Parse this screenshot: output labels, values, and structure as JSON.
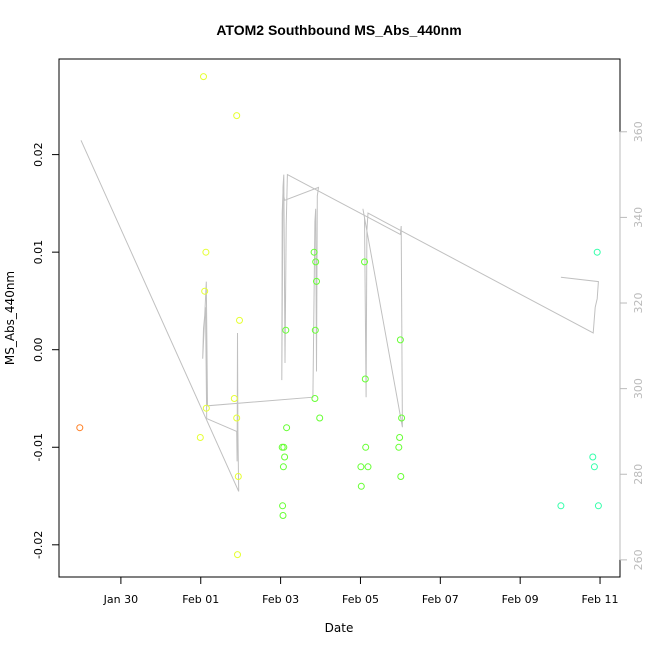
{
  "chart_data": {
    "type": "scatter",
    "title": "ATOM2 Southbound MS_Abs_440nm",
    "xlabel": "Date",
    "ylabel": "MS_Abs_440nm",
    "x_ticks": [
      {
        "label": "Jan 30",
        "day": 29
      },
      {
        "label": "Feb 01",
        "day": 31
      },
      {
        "label": "Feb 03",
        "day": 33
      },
      {
        "label": "Feb 05",
        "day": 35
      },
      {
        "label": "Feb 07",
        "day": 37
      },
      {
        "label": "Feb 09",
        "day": 39
      },
      {
        "label": "Feb 11",
        "day": 41
      }
    ],
    "xlim": [
      27.45,
      41.5
    ],
    "ylim": [
      -0.0233,
      0.0298
    ],
    "y_ticks": [
      -0.02,
      -0.01,
      0.0,
      0.01,
      0.02
    ],
    "y_tick_labels": [
      "-0.02",
      "-0.01",
      "0.00",
      "0.01",
      "0.02"
    ],
    "y2lim": [
      256,
      377
    ],
    "y2_ticks": [
      260,
      280,
      300,
      320,
      340,
      360
    ],
    "y2_tick_labels": [
      "260",
      "280",
      "300",
      "320",
      "340",
      "360"
    ],
    "grid": false,
    "colors": {
      "line": "#c0c0c0",
      "orange": "#ff7f24",
      "yellow": "#e6ff33",
      "green": "#66ff33",
      "cyan": "#33ffaa"
    },
    "points": [
      {
        "x": 27.97,
        "y": -0.008,
        "c": "orange"
      },
      {
        "x": 30.99,
        "y": -0.009,
        "c": "yellow"
      },
      {
        "x": 31.07,
        "y": 0.028,
        "c": "yellow"
      },
      {
        "x": 31.1,
        "y": 0.006,
        "c": "yellow"
      },
      {
        "x": 31.13,
        "y": 0.01,
        "c": "yellow"
      },
      {
        "x": 31.14,
        "y": -0.006,
        "c": "yellow"
      },
      {
        "x": 31.84,
        "y": -0.005,
        "c": "yellow"
      },
      {
        "x": 31.9,
        "y": -0.007,
        "c": "yellow"
      },
      {
        "x": 31.9,
        "y": 0.024,
        "c": "yellow"
      },
      {
        "x": 31.92,
        "y": -0.021,
        "c": "yellow"
      },
      {
        "x": 31.94,
        "y": -0.013,
        "c": "yellow"
      },
      {
        "x": 31.97,
        "y": 0.003,
        "c": "yellow"
      },
      {
        "x": 33.04,
        "y": -0.01,
        "c": "green"
      },
      {
        "x": 33.05,
        "y": -0.016,
        "c": "green"
      },
      {
        "x": 33.06,
        "y": -0.017,
        "c": "green"
      },
      {
        "x": 33.07,
        "y": -0.012,
        "c": "green"
      },
      {
        "x": 33.08,
        "y": -0.01,
        "c": "green"
      },
      {
        "x": 33.1,
        "y": -0.011,
        "c": "green"
      },
      {
        "x": 33.13,
        "y": 0.002,
        "c": "green"
      },
      {
        "x": 33.15,
        "y": -0.008,
        "c": "green"
      },
      {
        "x": 33.84,
        "y": 0.01,
        "c": "green"
      },
      {
        "x": 33.86,
        "y": -0.005,
        "c": "green"
      },
      {
        "x": 33.87,
        "y": 0.002,
        "c": "green"
      },
      {
        "x": 33.88,
        "y": 0.009,
        "c": "green"
      },
      {
        "x": 33.9,
        "y": 0.007,
        "c": "green"
      },
      {
        "x": 33.98,
        "y": -0.007,
        "c": "green"
      },
      {
        "x": 35.01,
        "y": -0.012,
        "c": "green"
      },
      {
        "x": 35.02,
        "y": -0.014,
        "c": "green"
      },
      {
        "x": 35.1,
        "y": 0.009,
        "c": "green"
      },
      {
        "x": 35.12,
        "y": -0.003,
        "c": "green"
      },
      {
        "x": 35.13,
        "y": -0.01,
        "c": "green"
      },
      {
        "x": 35.19,
        "y": -0.012,
        "c": "green"
      },
      {
        "x": 35.96,
        "y": -0.01,
        "c": "green"
      },
      {
        "x": 35.98,
        "y": -0.009,
        "c": "green"
      },
      {
        "x": 36.0,
        "y": 0.001,
        "c": "green"
      },
      {
        "x": 36.01,
        "y": -0.013,
        "c": "green"
      },
      {
        "x": 36.03,
        "y": -0.007,
        "c": "green"
      },
      {
        "x": 40.02,
        "y": -0.016,
        "c": "cyan"
      },
      {
        "x": 40.82,
        "y": -0.011,
        "c": "cyan"
      },
      {
        "x": 40.86,
        "y": -0.012,
        "c": "cyan"
      },
      {
        "x": 40.93,
        "y": 0.01,
        "c": "cyan"
      },
      {
        "x": 40.96,
        "y": -0.016,
        "c": "cyan"
      }
    ],
    "line_segments": [
      [
        [
          28.0,
          358
        ],
        [
          31.95,
          276
        ],
        [
          31.93,
          290
        ],
        [
          31.92,
          313
        ],
        [
          31.91,
          283
        ],
        [
          31.9,
          290
        ],
        [
          31.15,
          293
        ],
        [
          31.12,
          319
        ],
        [
          31.07,
          314
        ],
        [
          31.05,
          307
        ],
        [
          31.14,
          325
        ],
        [
          31.17,
          296
        ],
        [
          33.81,
          298
        ],
        [
          33.86,
          339
        ],
        [
          33.88,
          342
        ],
        [
          33.9,
          304
        ],
        [
          33.92,
          345
        ],
        [
          33.95,
          347
        ],
        [
          33.1,
          344
        ],
        [
          33.06,
          346
        ],
        [
          33.04,
          341
        ],
        [
          33.03,
          302
        ],
        [
          33.06,
          347
        ],
        [
          33.08,
          350
        ],
        [
          33.11,
          306
        ],
        [
          33.14,
          338
        ],
        [
          33.17,
          350
        ],
        [
          36.0,
          336
        ],
        [
          36.02,
          338
        ],
        [
          36.05,
          291
        ],
        [
          35.06,
          342
        ],
        [
          35.1,
          340
        ],
        [
          35.14,
          298
        ],
        [
          35.16,
          337
        ],
        [
          35.19,
          341
        ],
        [
          40.83,
          313
        ],
        [
          40.88,
          319
        ],
        [
          40.93,
          321
        ],
        [
          40.96,
          325
        ],
        [
          40.02,
          326
        ]
      ]
    ]
  }
}
